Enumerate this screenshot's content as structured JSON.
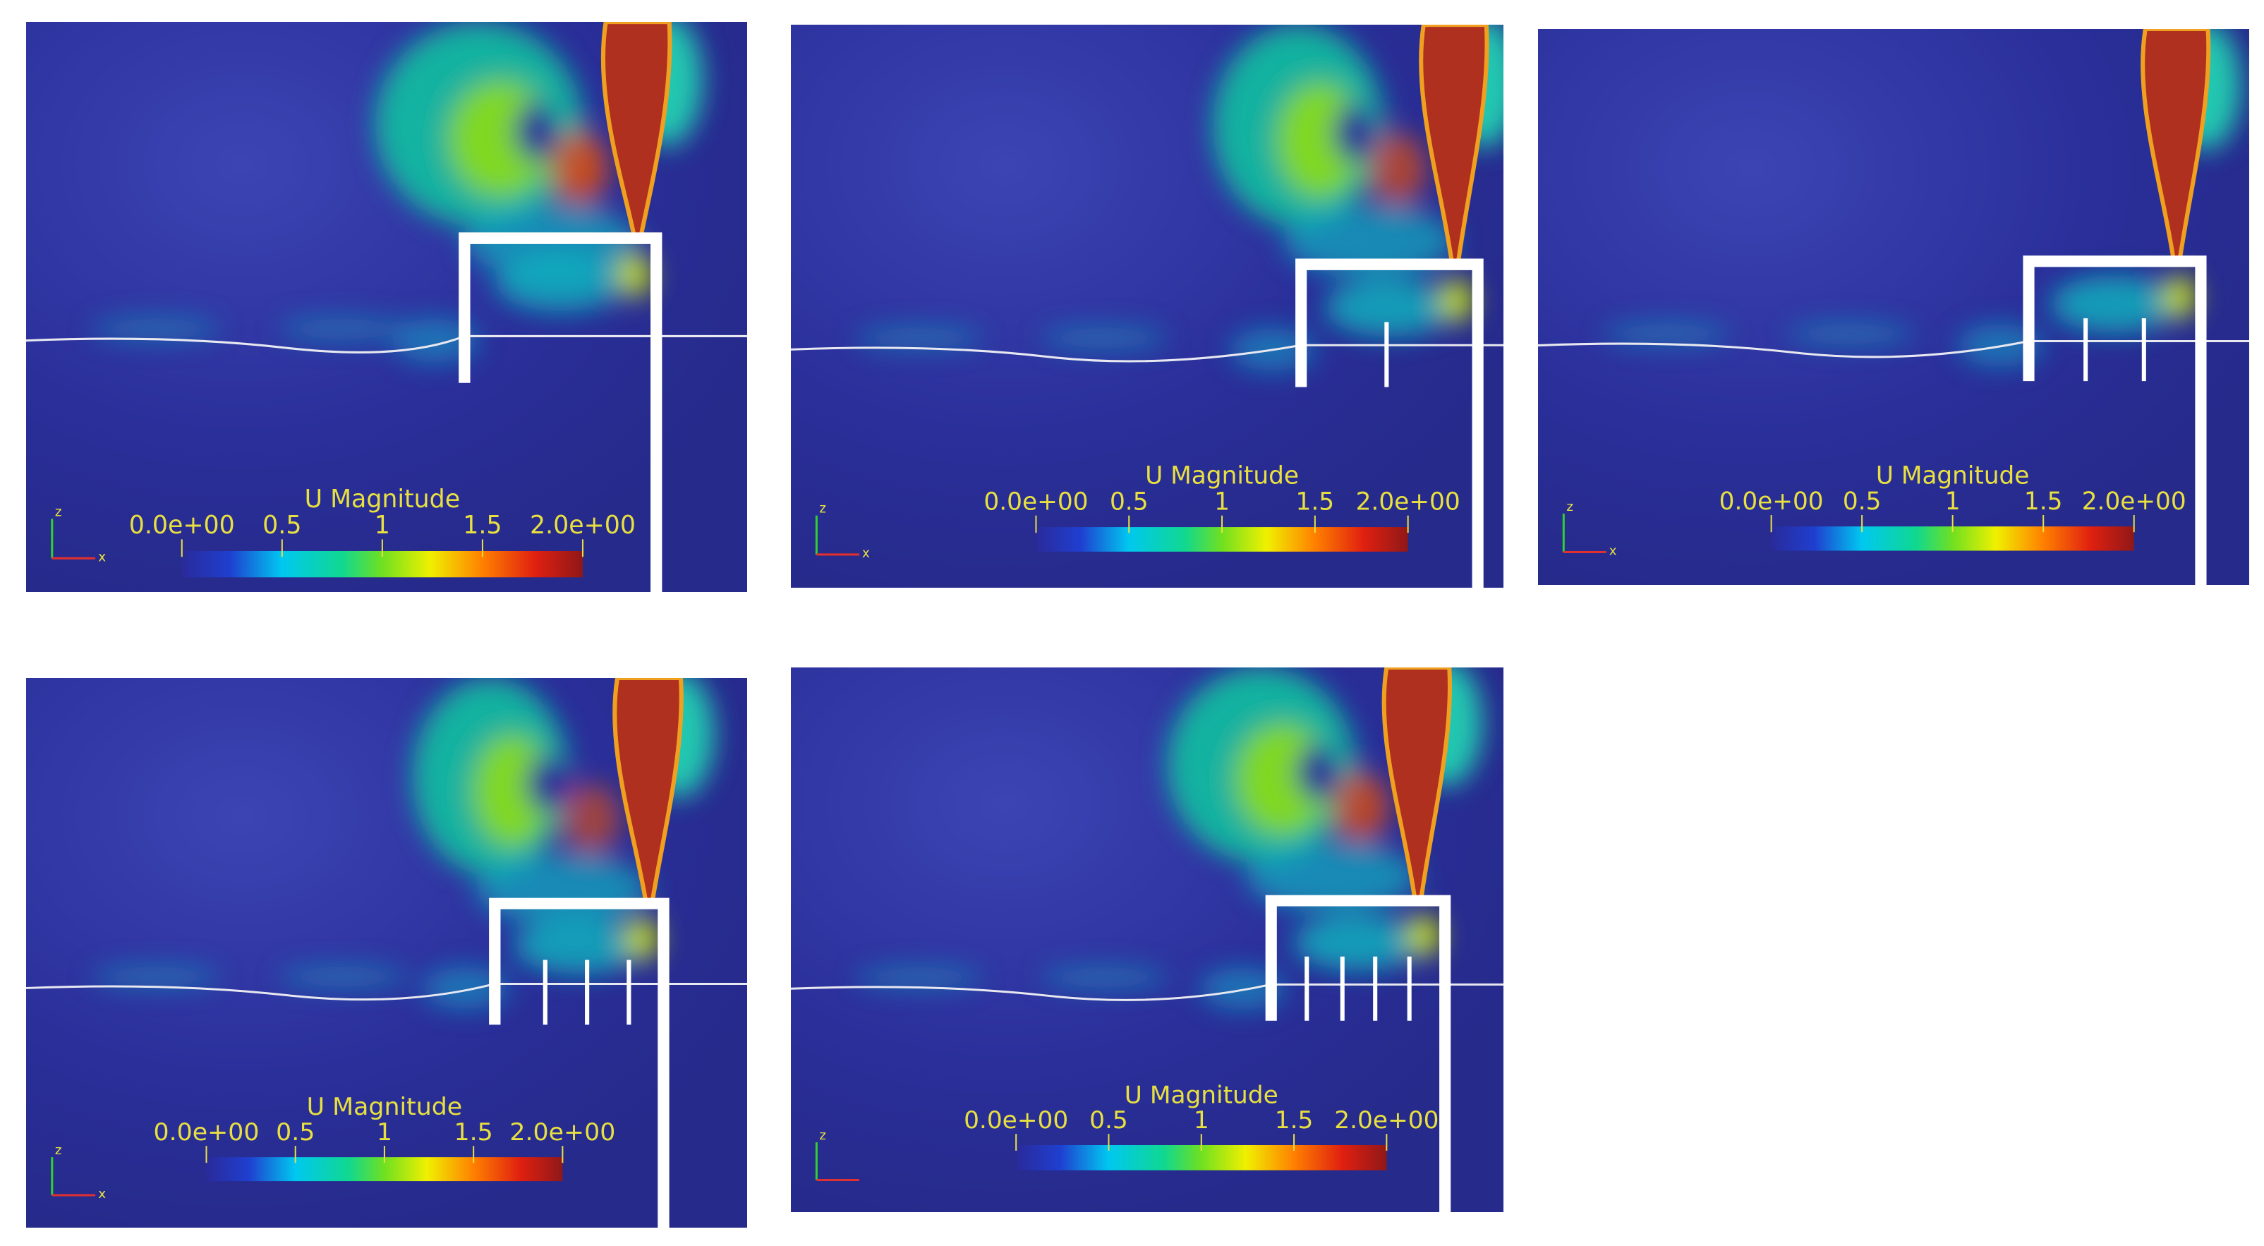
{
  "panels": [
    {
      "colorbar": {
        "title": "U Magnitude",
        "ticks": [
          "0.0e+00",
          "0.5",
          "1",
          "1.5",
          "2.0e+00"
        ]
      },
      "axes": {
        "z": "z",
        "x": "x"
      }
    },
    {
      "colorbar": {
        "title": "U Magnitude",
        "ticks": [
          "0.0e+00",
          "0.5",
          "1",
          "1.5",
          "2.0e+00"
        ]
      },
      "axes": {
        "z": "z",
        "x": "x"
      }
    },
    {
      "colorbar": {
        "title": "U Magnitude",
        "ticks": [
          "0.0e+00",
          "0.5",
          "1",
          "1.5",
          "2.0e+00"
        ]
      },
      "axes": {
        "z": "z",
        "x": "x"
      }
    },
    {
      "colorbar": {
        "title": "U Magnitude",
        "ticks": [
          "0.0e+00",
          "0.5",
          "1",
          "1.5",
          "2.0e+00"
        ]
      },
      "axes": {
        "z": "z",
        "x": "x"
      }
    },
    {
      "colorbar": {
        "title": "U Magnitude",
        "ticks": [
          "0.0e+00",
          "0.5",
          "1",
          "1.5",
          "2.0e+00"
        ]
      },
      "axes": {
        "z": "z"
      }
    }
  ]
}
